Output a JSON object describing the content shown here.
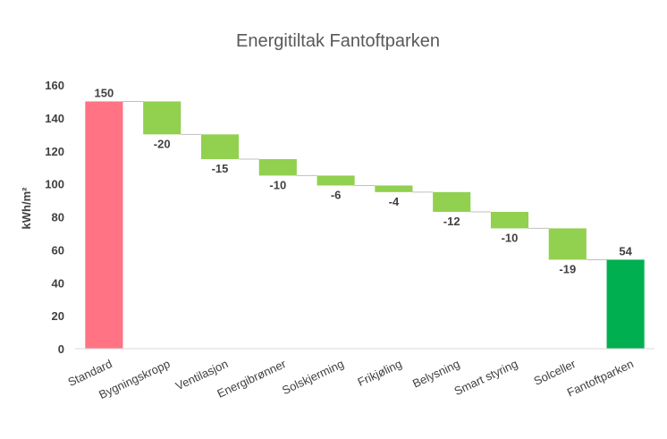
{
  "chart_data": {
    "type": "bar",
    "subtype": "waterfall",
    "title": "Energitiltak Fantoftparken",
    "xlabel": "",
    "ylabel": "kWh/m²",
    "ylim": [
      0,
      160
    ],
    "yticks": [
      0,
      20,
      40,
      60,
      80,
      100,
      120,
      140,
      160
    ],
    "grid": false,
    "legend": "none",
    "categories": [
      "Standard",
      "Bygningskropp",
      "Ventilasjon",
      "Energibrønner",
      "Solskjerming",
      "Frikjøling",
      "Belysning",
      "Smart styring",
      "Solceller",
      "Fantoftparken"
    ],
    "values": [
      150,
      -20,
      -15,
      -10,
      -6,
      -4,
      -12,
      -10,
      -19,
      54
    ],
    "bar_kinds": [
      "total",
      "step",
      "step",
      "step",
      "step",
      "step",
      "step",
      "step",
      "step",
      "total"
    ],
    "data_labels": [
      "150",
      "-20",
      "-15",
      "-10",
      "-6",
      "-4",
      "-12",
      "-10",
      "-19",
      "54"
    ],
    "colors": {
      "start_total": "#ff7384",
      "step": "#92d050",
      "end_total": "#00b050",
      "connector": "#bfbfbf",
      "axis": "#d9d9d9"
    }
  }
}
